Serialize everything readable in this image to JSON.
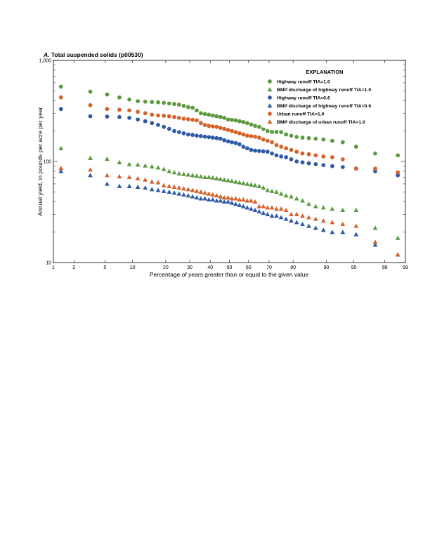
{
  "chart_data": {
    "type": "scatter",
    "panel_label": "A.",
    "title": "Total suspended solids (p00530)",
    "xlabel": "Percentage of years greater than or equal to the given value",
    "ylabel": "Annual yield, in pounds per acre per year",
    "x_scale": "probability",
    "y_scale": "log",
    "ylim": [
      10,
      1000
    ],
    "x_ticks": [
      1,
      2,
      5,
      10,
      20,
      30,
      40,
      50,
      60,
      70,
      80,
      90,
      95,
      98,
      99
    ],
    "y_ticks": [
      10,
      100,
      1000
    ],
    "y_tick_labels": [
      "10",
      "100",
      "1,000"
    ],
    "legend_title": "EXPLANATION",
    "legend_position": "top-right",
    "x": [
      1.3,
      3.3,
      5.3,
      7.3,
      9.3,
      11.3,
      13.3,
      15.3,
      17.3,
      19.3,
      21.3,
      23.3,
      25.3,
      27.3,
      29.3,
      31.3,
      33.3,
      35.3,
      37.3,
      39.3,
      41.3,
      43.3,
      45.3,
      47.3,
      49.3,
      51.3,
      53.3,
      55.3,
      57.3,
      59.3,
      61.3,
      63.3,
      65.3,
      67.3,
      69.3,
      71.3,
      73.3,
      75.3,
      77.3,
      79.3,
      81.3,
      83.3,
      85.3,
      87.3,
      89.3,
      91.3,
      93.3,
      95.3,
      97.3,
      98.7
    ],
    "series": [
      {
        "name": "Highway runoff TIA=1.0",
        "marker": "circle",
        "color": "#5b9a3e",
        "values": [
          550,
          490,
          460,
          430,
          410,
          395,
          390,
          388,
          385,
          380,
          375,
          370,
          365,
          355,
          345,
          340,
          320,
          300,
          295,
          290,
          285,
          280,
          275,
          270,
          260,
          258,
          255,
          250,
          245,
          240,
          232,
          225,
          220,
          210,
          200,
          196,
          196,
          195,
          185,
          180,
          175,
          172,
          170,
          168,
          165,
          160,
          155,
          140,
          120,
          115
        ]
      },
      {
        "name": "BMP discharge of highway runoff TIA=1.0",
        "marker": "triangle",
        "color": "#5b9a3e",
        "values": [
          135,
          108,
          106,
          98,
          94,
          93,
          91,
          89,
          87,
          84,
          80,
          78,
          76,
          75,
          74,
          73,
          72,
          71,
          70,
          70,
          69,
          68,
          67,
          66,
          65,
          64,
          63,
          62,
          61,
          60,
          59,
          58,
          57,
          55,
          52,
          51,
          50,
          48,
          46,
          45,
          43,
          41,
          38,
          36,
          35,
          34,
          33,
          33,
          22,
          17.5
        ]
      },
      {
        "name": "Highway runoff TIA=0.6",
        "marker": "circle",
        "color": "#2f5aa8",
        "values": [
          330,
          280,
          278,
          275,
          270,
          260,
          250,
          240,
          230,
          220,
          210,
          200,
          195,
          190,
          185,
          183,
          180,
          178,
          176,
          174,
          172,
          170,
          168,
          162,
          158,
          155,
          152,
          148,
          140,
          135,
          130,
          128,
          127,
          126,
          125,
          120,
          115,
          112,
          110,
          105,
          100,
          98,
          96,
          94,
          92,
          90,
          88,
          85,
          80,
          73
        ]
      },
      {
        "name": "BMP discharge of highway runoff TIA=0.6",
        "marker": "triangle",
        "color": "#2f5aa8",
        "values": [
          80,
          73,
          60,
          57,
          57,
          56,
          55,
          53,
          52,
          51,
          50,
          49,
          48,
          47,
          46,
          45,
          44,
          43,
          43,
          42,
          42,
          41,
          41,
          40,
          40,
          39,
          38,
          37,
          36,
          35,
          34,
          33,
          32,
          31,
          30,
          29,
          29,
          28,
          27,
          26,
          25,
          24,
          23,
          22,
          21,
          20,
          20,
          19,
          15,
          12
        ]
      },
      {
        "name": "Urban runoff TIA=1.0",
        "marker": "circle",
        "color": "#d4622a",
        "values": [
          430,
          360,
          330,
          325,
          320,
          310,
          300,
          290,
          285,
          283,
          280,
          275,
          270,
          265,
          262,
          258,
          255,
          240,
          230,
          225,
          222,
          220,
          215,
          210,
          205,
          200,
          195,
          190,
          185,
          180,
          178,
          176,
          172,
          165,
          160,
          155,
          145,
          140,
          135,
          130,
          125,
          120,
          118,
          115,
          112,
          110,
          105,
          85,
          85,
          78
        ]
      },
      {
        "name": "BMP discharge of urban runoff TIA=1.0",
        "marker": "triangle",
        "color": "#d4622a",
        "values": [
          86,
          83,
          73,
          71,
          70,
          68,
          66,
          63,
          62,
          58,
          57,
          56,
          55,
          54,
          53,
          52,
          51,
          50,
          49,
          48,
          47,
          46,
          45,
          44,
          44,
          43,
          43,
          42,
          42,
          41,
          41,
          40,
          36,
          36,
          35,
          35,
          34,
          34,
          33,
          30,
          30,
          29,
          28,
          27,
          26,
          25,
          24,
          23,
          16,
          12
        ]
      }
    ]
  }
}
